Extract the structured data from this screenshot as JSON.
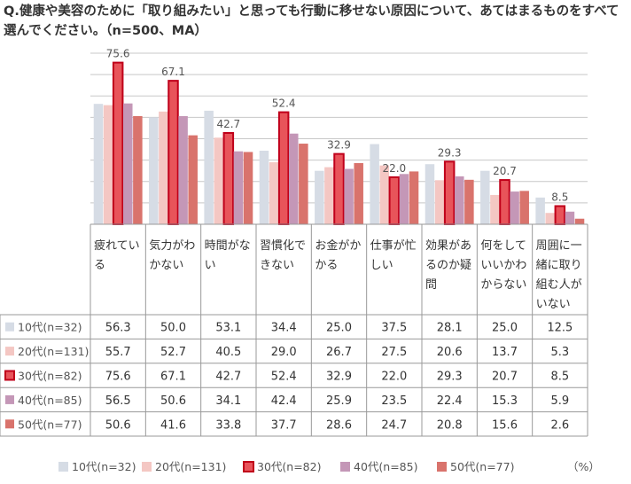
{
  "title": "Q.健康や美容のために「取り組みたい」と思っても行動に移せない原因について、あてはまるものをすべて選んでください。（n=500、MA）",
  "unit": "（%）",
  "colors": {
    "10代": "#d6dce5",
    "20代": "#f4c7c3",
    "30代": "#e8545a",
    "40代": "#c497b7",
    "50代": "#d9736c",
    "highlight_stroke": "#c0001a",
    "grid": "#c8c8c8"
  },
  "chart_data": {
    "type": "bar",
    "ylim": [
      0,
      80
    ],
    "grid_step": 10,
    "categories": [
      [
        "疲れてい",
        "る"
      ],
      [
        "気力がわ",
        "かない"
      ],
      [
        "時間がな",
        "い"
      ],
      [
        "習慣化で",
        "きない"
      ],
      [
        "お金がか",
        "かる"
      ],
      [
        "仕事が忙",
        "しい"
      ],
      [
        "効果があ",
        "るのか疑",
        "問"
      ],
      [
        "何をして",
        "いいかわ",
        "からない"
      ],
      [
        "周囲に一",
        "緒に取り",
        "組む人が",
        "いない"
      ]
    ],
    "highlight_series": "30代(n=82)",
    "series": [
      {
        "name": "10代(n=32)",
        "values": [
          56.3,
          50.0,
          53.1,
          34.4,
          25.0,
          37.5,
          28.1,
          25.0,
          12.5
        ]
      },
      {
        "name": "20代(n=131)",
        "values": [
          55.7,
          52.7,
          40.5,
          29.0,
          26.7,
          27.5,
          20.6,
          13.7,
          5.3
        ]
      },
      {
        "name": "30代(n=82)",
        "values": [
          75.6,
          67.1,
          42.7,
          52.4,
          32.9,
          22.0,
          29.3,
          20.7,
          8.5
        ]
      },
      {
        "name": "40代(n=85)",
        "values": [
          56.5,
          50.6,
          34.1,
          42.4,
          25.9,
          23.5,
          22.4,
          15.3,
          5.9
        ]
      },
      {
        "name": "50代(n=77)",
        "values": [
          50.6,
          41.6,
          33.8,
          37.7,
          28.6,
          24.7,
          20.8,
          15.6,
          2.6
        ]
      }
    ],
    "data_labels": [
      "75.6",
      "67.1",
      "42.7",
      "52.4",
      "32.9",
      "22.0",
      "29.3",
      "20.7",
      "8.5"
    ],
    "table": [
      [
        "56.3",
        "50.0",
        "53.1",
        "34.4",
        "25.0",
        "37.5",
        "28.1",
        "25.0",
        "12.5"
      ],
      [
        "55.7",
        "52.7",
        "40.5",
        "29.0",
        "26.7",
        "27.5",
        "20.6",
        "13.7",
        "5.3"
      ],
      [
        "75.6",
        "67.1",
        "42.7",
        "52.4",
        "32.9",
        "22.0",
        "29.3",
        "20.7",
        "8.5"
      ],
      [
        "56.5",
        "50.6",
        "34.1",
        "42.4",
        "25.9",
        "23.5",
        "22.4",
        "15.3",
        "5.9"
      ],
      [
        "50.6",
        "41.6",
        "33.8",
        "37.7",
        "28.6",
        "24.7",
        "20.8",
        "15.6",
        "2.6"
      ]
    ]
  }
}
